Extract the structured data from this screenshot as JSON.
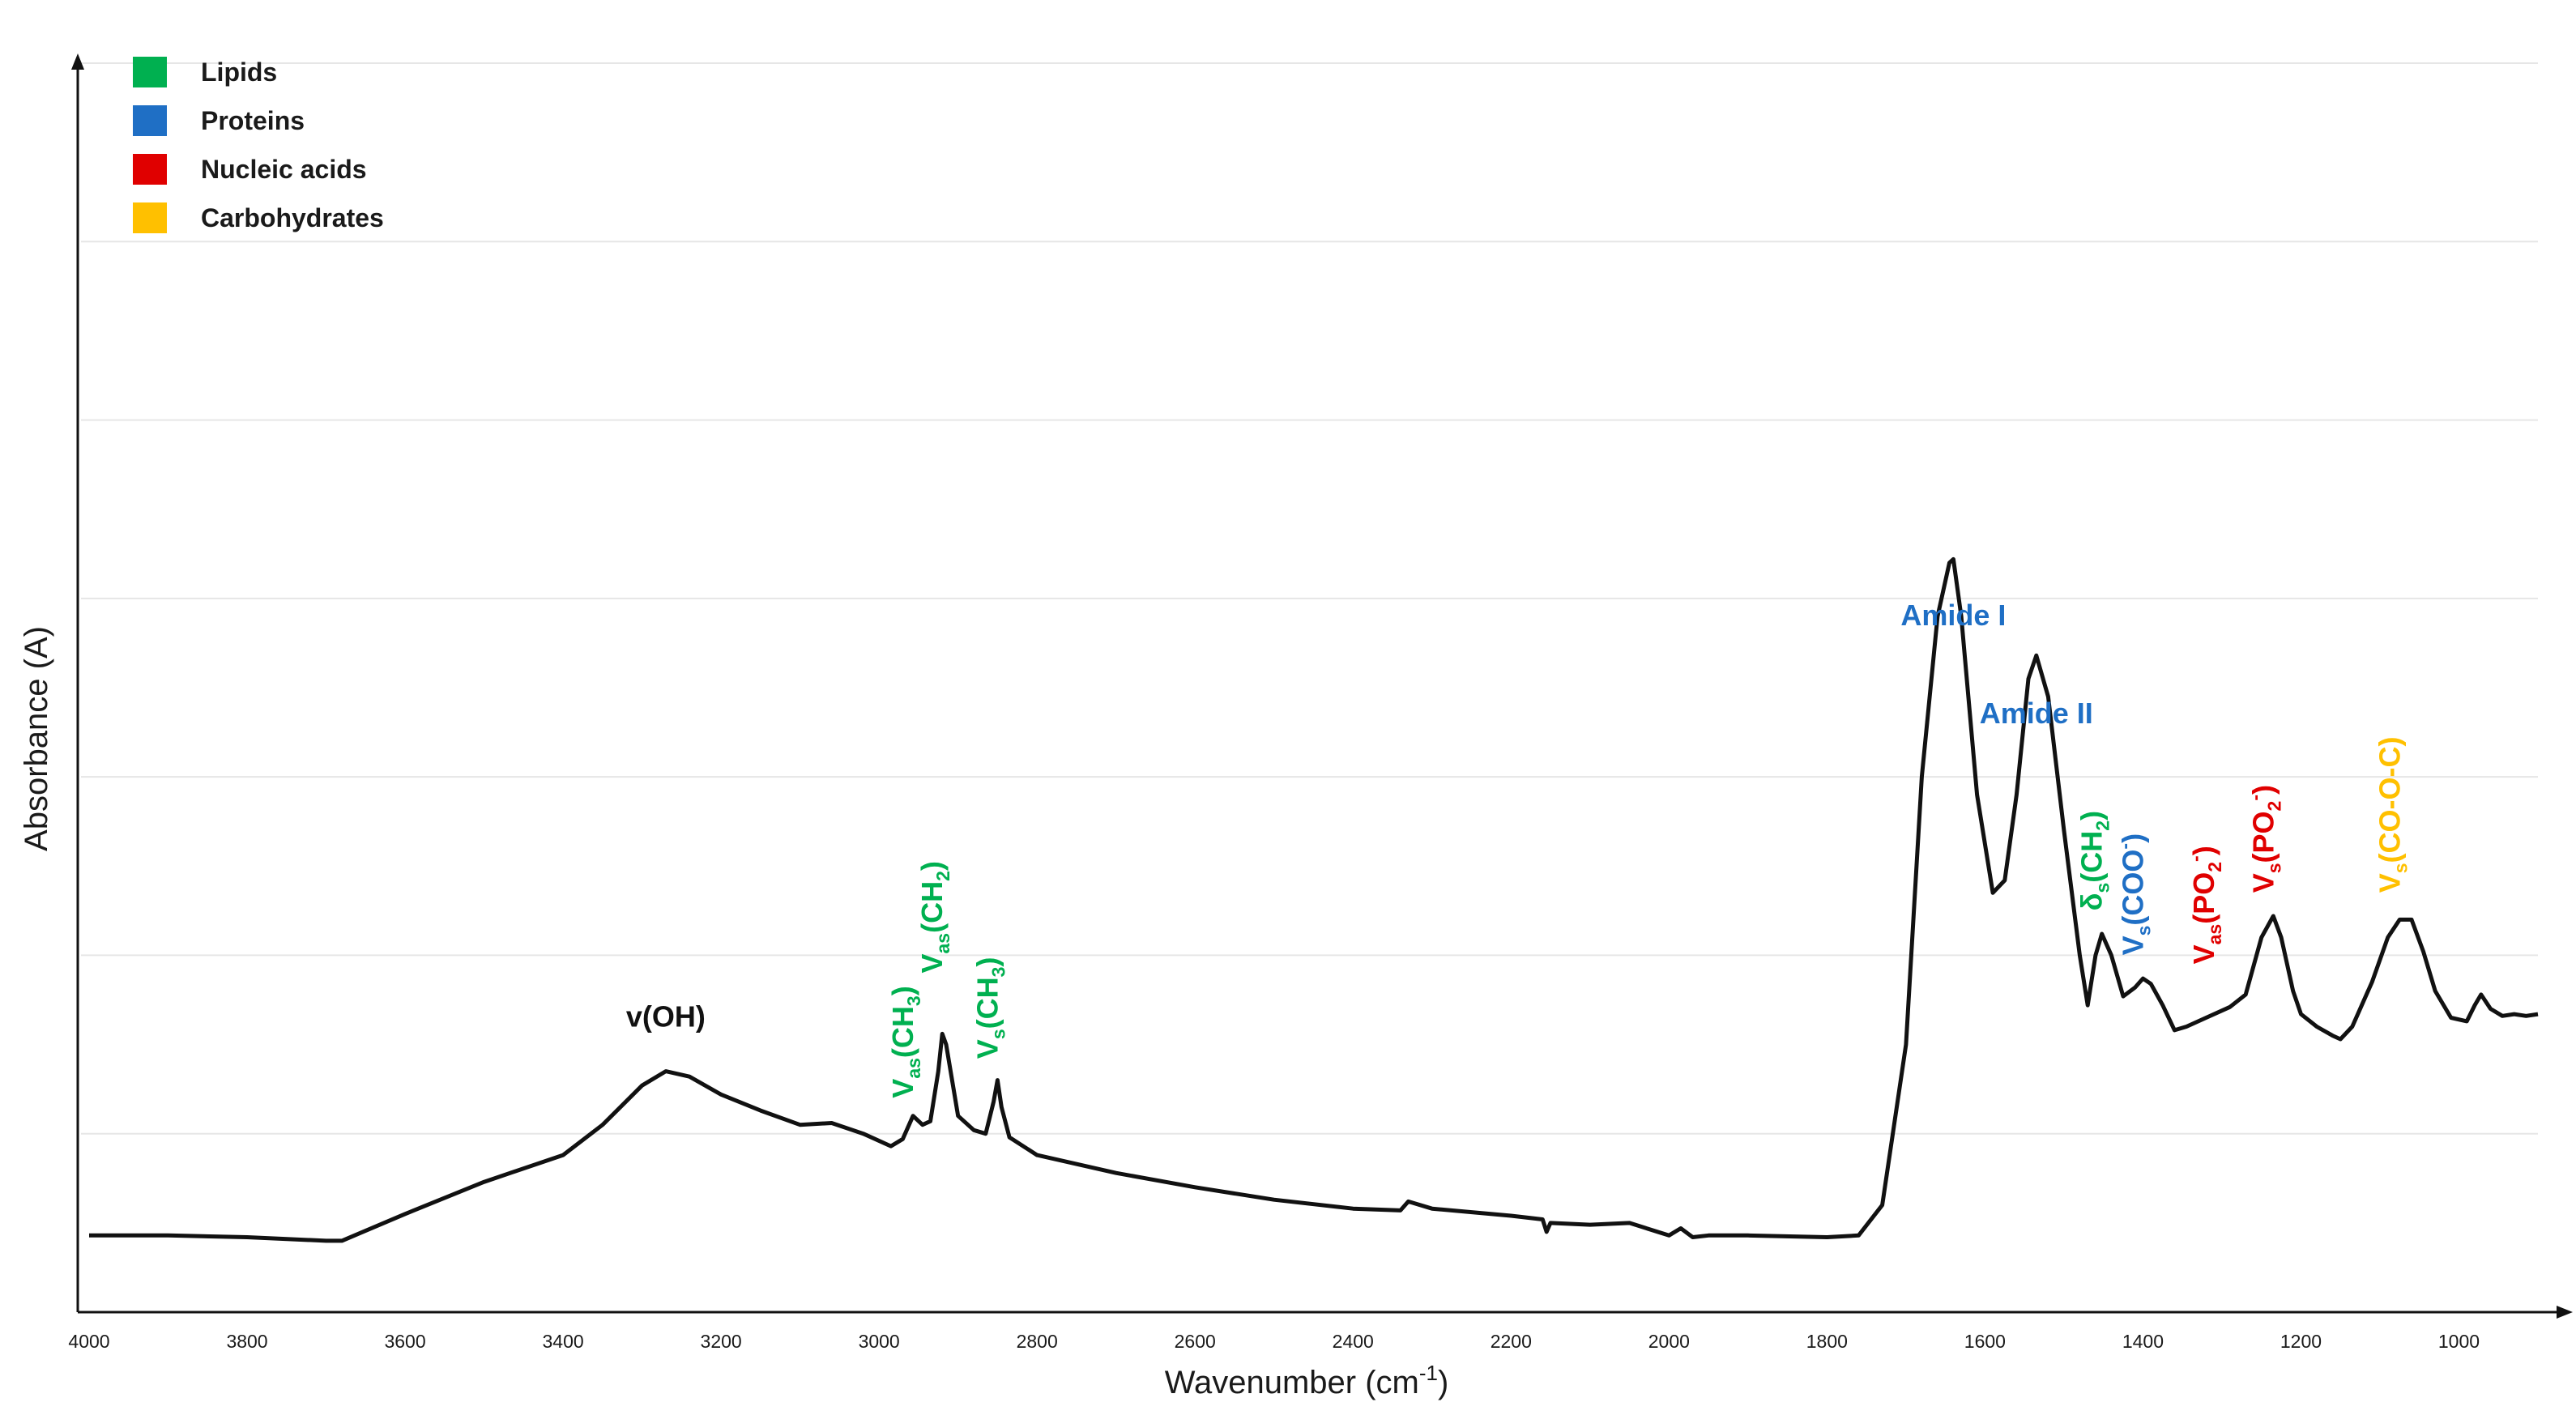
{
  "chart_data": {
    "type": "line",
    "title": "",
    "xlabel_main": "Wavenumber (cm",
    "xlabel_sup": "-1",
    "xlabel_close": ")",
    "ylabel": "Absorbance (A)",
    "xlim": [
      4000,
      900
    ],
    "x_reversed": true,
    "xticks": [
      "4000",
      "3800",
      "3600",
      "3400",
      "3200",
      "3000",
      "2800",
      "2600",
      "2400",
      "2200",
      "2000",
      "1800",
      "1600",
      "1400",
      "1200",
      "1000"
    ],
    "ylim": [
      0,
      7
    ],
    "grid": "horizontal",
    "legend_position": "top-left",
    "legend": [
      {
        "label": "Lipids",
        "color": "#00b050"
      },
      {
        "label": "Proteins",
        "color": "#1f6fc5"
      },
      {
        "label": "Nucleic acids",
        "color": "#e00000"
      },
      {
        "label": "Carbohydrates",
        "color": "#ffc000"
      }
    ],
    "series": [
      {
        "line_color": "#111111",
        "points": [
          [
            4000,
            0.43
          ],
          [
            3900,
            0.43
          ],
          [
            3800,
            0.42
          ],
          [
            3700,
            0.4
          ],
          [
            3680,
            0.4
          ],
          [
            3600,
            0.55
          ],
          [
            3500,
            0.73
          ],
          [
            3400,
            0.88
          ],
          [
            3350,
            1.05
          ],
          [
            3300,
            1.27
          ],
          [
            3270,
            1.35
          ],
          [
            3240,
            1.32
          ],
          [
            3200,
            1.22
          ],
          [
            3150,
            1.13
          ],
          [
            3100,
            1.05
          ],
          [
            3060,
            1.06
          ],
          [
            3020,
            1.0
          ],
          [
            2985,
            0.93
          ],
          [
            2970,
            0.97
          ],
          [
            2957,
            1.1
          ],
          [
            2945,
            1.05
          ],
          [
            2935,
            1.07
          ],
          [
            2925,
            1.35
          ],
          [
            2920,
            1.56
          ],
          [
            2915,
            1.5
          ],
          [
            2900,
            1.1
          ],
          [
            2880,
            1.02
          ],
          [
            2865,
            1.0
          ],
          [
            2855,
            1.18
          ],
          [
            2850,
            1.3
          ],
          [
            2845,
            1.15
          ],
          [
            2835,
            0.98
          ],
          [
            2800,
            0.88
          ],
          [
            2700,
            0.78
          ],
          [
            2600,
            0.7
          ],
          [
            2500,
            0.63
          ],
          [
            2400,
            0.58
          ],
          [
            2340,
            0.57
          ],
          [
            2330,
            0.62
          ],
          [
            2300,
            0.58
          ],
          [
            2200,
            0.54
          ],
          [
            2160,
            0.52
          ],
          [
            2155,
            0.45
          ],
          [
            2150,
            0.5
          ],
          [
            2100,
            0.49
          ],
          [
            2050,
            0.5
          ],
          [
            2000,
            0.43
          ],
          [
            1985,
            0.47
          ],
          [
            1970,
            0.42
          ],
          [
            1950,
            0.43
          ],
          [
            1900,
            0.43
          ],
          [
            1800,
            0.42
          ],
          [
            1760,
            0.43
          ],
          [
            1730,
            0.6
          ],
          [
            1700,
            1.5
          ],
          [
            1680,
            3.0
          ],
          [
            1660,
            3.9
          ],
          [
            1645,
            4.2
          ],
          [
            1640,
            4.22
          ],
          [
            1630,
            3.9
          ],
          [
            1610,
            2.9
          ],
          [
            1590,
            2.35
          ],
          [
            1575,
            2.42
          ],
          [
            1560,
            2.9
          ],
          [
            1545,
            3.55
          ],
          [
            1535,
            3.68
          ],
          [
            1520,
            3.45
          ],
          [
            1500,
            2.7
          ],
          [
            1480,
            2.0
          ],
          [
            1470,
            1.72
          ],
          [
            1460,
            2.0
          ],
          [
            1452,
            2.12
          ],
          [
            1440,
            2.0
          ],
          [
            1425,
            1.77
          ],
          [
            1410,
            1.82
          ],
          [
            1400,
            1.87
          ],
          [
            1390,
            1.84
          ],
          [
            1375,
            1.72
          ],
          [
            1360,
            1.58
          ],
          [
            1345,
            1.6
          ],
          [
            1320,
            1.65
          ],
          [
            1290,
            1.71
          ],
          [
            1270,
            1.78
          ],
          [
            1250,
            2.1
          ],
          [
            1235,
            2.22
          ],
          [
            1225,
            2.1
          ],
          [
            1210,
            1.8
          ],
          [
            1200,
            1.67
          ],
          [
            1180,
            1.6
          ],
          [
            1160,
            1.55
          ],
          [
            1150,
            1.53
          ],
          [
            1135,
            1.6
          ],
          [
            1110,
            1.85
          ],
          [
            1090,
            2.1
          ],
          [
            1075,
            2.2
          ],
          [
            1060,
            2.2
          ],
          [
            1045,
            2.02
          ],
          [
            1030,
            1.8
          ],
          [
            1010,
            1.65
          ],
          [
            990,
            1.63
          ],
          [
            980,
            1.72
          ],
          [
            972,
            1.78
          ],
          [
            960,
            1.7
          ],
          [
            945,
            1.66
          ],
          [
            930,
            1.67
          ],
          [
            915,
            1.66
          ],
          [
            900,
            1.67
          ]
        ]
      }
    ],
    "annotations": [
      {
        "label": "v(OH)",
        "x": 3270,
        "y": 1.6,
        "color": "#111111",
        "rotate": false
      },
      {
        "label": "Amide I",
        "x": 1640,
        "y": 3.85,
        "color": "#1f6fc5",
        "rotate": false
      },
      {
        "label": "Amide II",
        "x": 1535,
        "y": 3.3,
        "color": "#1f6fc5",
        "rotate": false
      },
      {
        "base": "V",
        "sub": "as",
        "rest": "(CH",
        "sub2": "3",
        "close": ")",
        "x": 2957,
        "y": 1.2,
        "color": "#00b050",
        "rotate": true
      },
      {
        "base": "V",
        "sub": "as",
        "rest": "(CH",
        "sub2": "2",
        "close": ")",
        "x": 2920,
        "y": 1.9,
        "color": "#00b050",
        "rotate": true
      },
      {
        "base": "V",
        "sub": "s",
        "rest": "(CH",
        "sub2": "3",
        "close": ")",
        "x": 2850,
        "y": 1.42,
        "color": "#00b050",
        "rotate": true
      },
      {
        "base": "δ",
        "sub": "s",
        "rest": "(CH",
        "sub2": "2",
        "close": ")",
        "x": 1452,
        "y": 2.25,
        "color": "#00b050",
        "rotate": true
      },
      {
        "base": "V",
        "sub": "s",
        "rest": "(COO",
        "sup": "-",
        "close": ")",
        "x": 1400,
        "y": 2.0,
        "color": "#1f6fc5",
        "rotate": true
      },
      {
        "base": "V",
        "sub": "as",
        "rest": "(PO",
        "sub2": "2",
        "sup": "-",
        "close": ")",
        "x": 1310,
        "y": 1.95,
        "color": "#e00000",
        "rotate": true
      },
      {
        "base": "V",
        "sub": "s",
        "rest": "(PO",
        "sub2": "2",
        "sup": "-",
        "close": ")",
        "x": 1235,
        "y": 2.35,
        "color": "#e00000",
        "rotate": true
      },
      {
        "base": "V",
        "sub": "s",
        "rest": "(CO-O-C)",
        "x": 1075,
        "y": 2.35,
        "color": "#ffc000",
        "rotate": true
      }
    ]
  }
}
